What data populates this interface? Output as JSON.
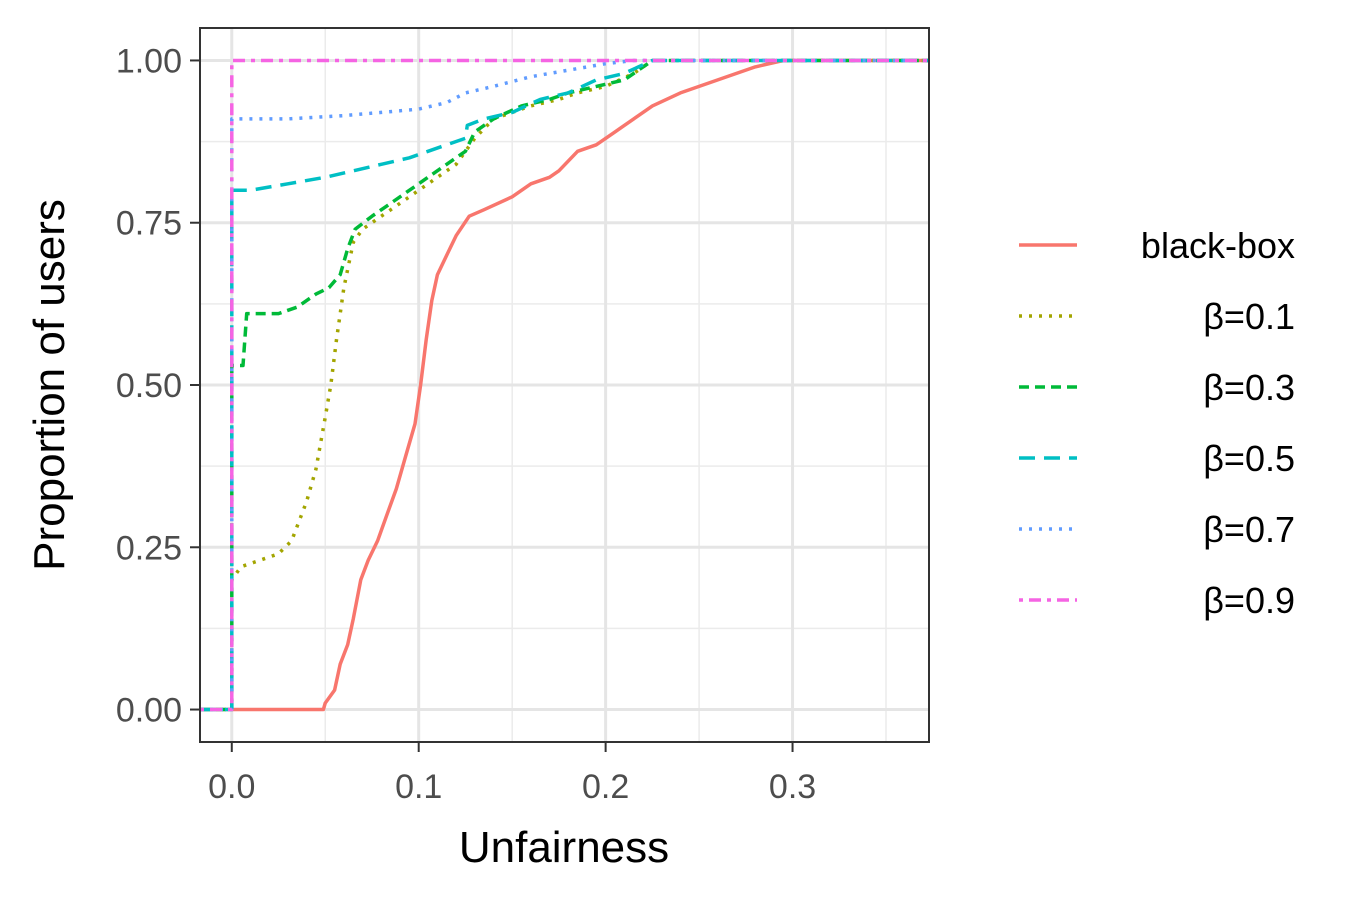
{
  "chart_data": {
    "type": "line",
    "xlabel": "Unfairness",
    "ylabel": "Proportion of users",
    "xlim": [
      -0.017,
      0.373
    ],
    "ylim": [
      -0.05,
      1.05
    ],
    "x_ticks": [
      0.0,
      0.1,
      0.2,
      0.3
    ],
    "x_tick_labels": [
      "0.0",
      "0.1",
      "0.2",
      "0.3"
    ],
    "y_ticks": [
      0.0,
      0.25,
      0.5,
      0.75,
      1.0
    ],
    "y_tick_labels": [
      "0.00",
      "0.25",
      "0.50",
      "0.75",
      "1.00"
    ],
    "grid": true,
    "legend_position": "right",
    "series": [
      {
        "name": "black-box",
        "color": "#F8766D",
        "dash": "solid",
        "points": [
          [
            -0.017,
            0
          ],
          [
            0.049,
            0
          ],
          [
            0.05,
            0.01
          ],
          [
            0.055,
            0.03
          ],
          [
            0.058,
            0.07
          ],
          [
            0.062,
            0.1
          ],
          [
            0.065,
            0.14
          ],
          [
            0.069,
            0.2
          ],
          [
            0.073,
            0.23
          ],
          [
            0.078,
            0.26
          ],
          [
            0.083,
            0.3
          ],
          [
            0.088,
            0.34
          ],
          [
            0.093,
            0.39
          ],
          [
            0.098,
            0.44
          ],
          [
            0.101,
            0.5
          ],
          [
            0.104,
            0.57
          ],
          [
            0.107,
            0.63
          ],
          [
            0.11,
            0.67
          ],
          [
            0.115,
            0.7
          ],
          [
            0.12,
            0.73
          ],
          [
            0.127,
            0.76
          ],
          [
            0.135,
            0.77
          ],
          [
            0.15,
            0.79
          ],
          [
            0.16,
            0.81
          ],
          [
            0.17,
            0.82
          ],
          [
            0.175,
            0.83
          ],
          [
            0.185,
            0.86
          ],
          [
            0.195,
            0.87
          ],
          [
            0.205,
            0.89
          ],
          [
            0.215,
            0.91
          ],
          [
            0.225,
            0.93
          ],
          [
            0.24,
            0.95
          ],
          [
            0.26,
            0.97
          ],
          [
            0.28,
            0.99
          ],
          [
            0.295,
            1.0
          ],
          [
            0.373,
            1.0
          ]
        ]
      },
      {
        "name": "β=0.1",
        "color": "#A3A500",
        "dash": "dot",
        "points": [
          [
            -0.017,
            0
          ],
          [
            0.0,
            0
          ],
          [
            0.0,
            0.2
          ],
          [
            0.005,
            0.22
          ],
          [
            0.015,
            0.23
          ],
          [
            0.025,
            0.24
          ],
          [
            0.032,
            0.26
          ],
          [
            0.04,
            0.32
          ],
          [
            0.045,
            0.37
          ],
          [
            0.05,
            0.45
          ],
          [
            0.053,
            0.5
          ],
          [
            0.056,
            0.57
          ],
          [
            0.06,
            0.65
          ],
          [
            0.065,
            0.72
          ],
          [
            0.07,
            0.74
          ],
          [
            0.08,
            0.76
          ],
          [
            0.09,
            0.78
          ],
          [
            0.1,
            0.8
          ],
          [
            0.11,
            0.82
          ],
          [
            0.12,
            0.84
          ],
          [
            0.13,
            0.88
          ],
          [
            0.14,
            0.91
          ],
          [
            0.15,
            0.92
          ],
          [
            0.16,
            0.93
          ],
          [
            0.175,
            0.94
          ],
          [
            0.185,
            0.95
          ],
          [
            0.2,
            0.96
          ],
          [
            0.215,
            0.98
          ],
          [
            0.225,
            1.0
          ],
          [
            0.373,
            1.0
          ]
        ]
      },
      {
        "name": "β=0.3",
        "color": "#00BA38",
        "dash": "dash",
        "points": [
          [
            -0.017,
            0
          ],
          [
            0.0,
            0
          ],
          [
            0.0,
            0.53
          ],
          [
            0.006,
            0.53
          ],
          [
            0.008,
            0.61
          ],
          [
            0.025,
            0.61
          ],
          [
            0.035,
            0.62
          ],
          [
            0.045,
            0.64
          ],
          [
            0.052,
            0.65
          ],
          [
            0.058,
            0.67
          ],
          [
            0.062,
            0.71
          ],
          [
            0.066,
            0.74
          ],
          [
            0.075,
            0.76
          ],
          [
            0.085,
            0.78
          ],
          [
            0.1,
            0.81
          ],
          [
            0.115,
            0.84
          ],
          [
            0.125,
            0.86
          ],
          [
            0.13,
            0.89
          ],
          [
            0.14,
            0.91
          ],
          [
            0.155,
            0.93
          ],
          [
            0.17,
            0.94
          ],
          [
            0.18,
            0.95
          ],
          [
            0.195,
            0.96
          ],
          [
            0.21,
            0.97
          ],
          [
            0.225,
            1.0
          ],
          [
            0.373,
            1.0
          ]
        ]
      },
      {
        "name": "β=0.5",
        "color": "#00BFC4",
        "dash": "longdash",
        "points": [
          [
            -0.017,
            0
          ],
          [
            0.0,
            0
          ],
          [
            0.0,
            0.8
          ],
          [
            0.01,
            0.8
          ],
          [
            0.03,
            0.81
          ],
          [
            0.05,
            0.82
          ],
          [
            0.065,
            0.83
          ],
          [
            0.08,
            0.84
          ],
          [
            0.095,
            0.85
          ],
          [
            0.105,
            0.86
          ],
          [
            0.115,
            0.87
          ],
          [
            0.125,
            0.88
          ],
          [
            0.126,
            0.9
          ],
          [
            0.135,
            0.91
          ],
          [
            0.15,
            0.92
          ],
          [
            0.165,
            0.94
          ],
          [
            0.18,
            0.95
          ],
          [
            0.195,
            0.97
          ],
          [
            0.21,
            0.98
          ],
          [
            0.225,
            1.0
          ],
          [
            0.373,
            1.0
          ]
        ]
      },
      {
        "name": "β=0.7",
        "color": "#619CFF",
        "dash": "dot",
        "points": [
          [
            -0.017,
            0
          ],
          [
            0.0,
            0
          ],
          [
            0.0,
            0.91
          ],
          [
            0.03,
            0.91
          ],
          [
            0.06,
            0.915
          ],
          [
            0.08,
            0.92
          ],
          [
            0.1,
            0.925
          ],
          [
            0.115,
            0.935
          ],
          [
            0.125,
            0.95
          ],
          [
            0.14,
            0.96
          ],
          [
            0.16,
            0.975
          ],
          [
            0.18,
            0.985
          ],
          [
            0.2,
            0.995
          ],
          [
            0.215,
            1.0
          ],
          [
            0.373,
            1.0
          ]
        ]
      },
      {
        "name": "β=0.9",
        "color": "#F564E3",
        "dash": "dashdot",
        "points": [
          [
            -0.017,
            0
          ],
          [
            0.0,
            0
          ],
          [
            0.0,
            1.0
          ],
          [
            0.373,
            1.0
          ]
        ]
      }
    ]
  }
}
